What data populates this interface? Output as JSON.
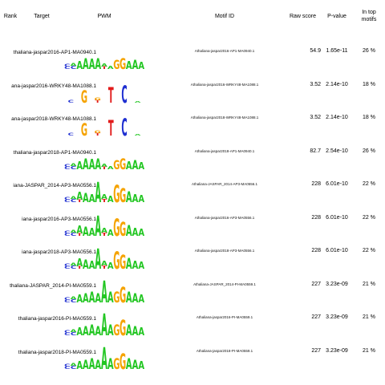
{
  "headers": {
    "rank": "Rank",
    "target": "Target",
    "pwm": "PWM",
    "motif_id": "Motif ID",
    "raw_score": "Raw score",
    "p_value": "P-value",
    "in_top_line1": "In top",
    "in_top_line2": "motifs"
  },
  "colors": {
    "A": "#22c622",
    "C": "#1f2fd1",
    "G": "#f5a300",
    "T": "#e21b1b"
  },
  "rows": [
    {
      "target": "thaliana-jaspar2016-AP1-MA0940.1",
      "motif_id": "Athaliana-jaspar2016-AP1-MA0940.1",
      "raw": "54.9",
      "pval": "1.65e-11",
      "pct": "26 %",
      "logo": "ap1"
    },
    {
      "target": "ana-jaspar2016-WRKY48-MA1088.1",
      "motif_id": "Athaliana-jaspar2016-WRKY48-MA1088.1",
      "raw": "3.52",
      "pval": "2.14e-10",
      "pct": "18 %",
      "logo": "wrky"
    },
    {
      "target": "ana-jaspar2018-WRKY48-MA1088.1",
      "motif_id": "Athaliana-jaspar2018-WRKY48-MA1088.1",
      "raw": "3.52",
      "pval": "2.14e-10",
      "pct": "18 %",
      "logo": "wrky"
    },
    {
      "target": "thaliana-jaspar2018-AP1-MA0940.1",
      "motif_id": "Athaliana-jaspar2018-AP1-MA0940.1",
      "raw": "82.7",
      "pval": "2.54e-10",
      "pct": "26 %",
      "logo": "ap1"
    },
    {
      "target": "iana-JASPAR_2014-AP3-MA0556.1",
      "motif_id": "Athaliana-JASPAR_2014-AP3-MA0556.1",
      "raw": "228",
      "pval": "6.01e-10",
      "pct": "22 %",
      "logo": "ap3"
    },
    {
      "target": "iana-jaspar2016-AP3-MA0556.1",
      "motif_id": "Athaliana-jaspar2016-AP3-MA0556.1",
      "raw": "228",
      "pval": "6.01e-10",
      "pct": "22 %",
      "logo": "ap3"
    },
    {
      "target": "iana-jaspar2018-AP3-MA0556.1",
      "motif_id": "Athaliana-jaspar2018-AP3-MA0556.1",
      "raw": "228",
      "pval": "6.01e-10",
      "pct": "22 %",
      "logo": "ap3"
    },
    {
      "target": "thaliana-JASPAR_2014-PI-MA0559.1",
      "motif_id": "Athaliana-JASPAR_2014-PI-MA0559.1",
      "raw": "227",
      "pval": "3.23e-09",
      "pct": "21 %",
      "logo": "pi"
    },
    {
      "target": "thaliana-jaspar2016-PI-MA0559.1",
      "motif_id": "Athaliana-jaspar2016-PI-MA0559.1",
      "raw": "227",
      "pval": "3.23e-09",
      "pct": "21 %",
      "logo": "pi"
    },
    {
      "target": "thaliana-jaspar2018-PI-MA0559.1",
      "motif_id": "Athaliana-jaspar2018-PI-MA0559.1",
      "raw": "227",
      "pval": "3.23e-09",
      "pct": "21 %",
      "logo": "pi"
    }
  ]
}
